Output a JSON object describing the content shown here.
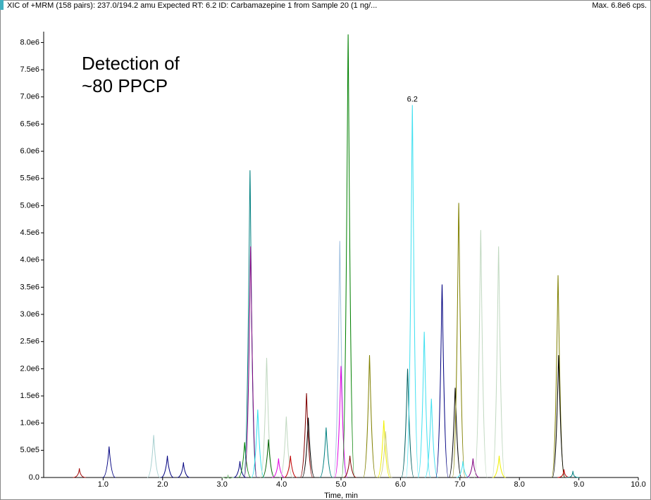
{
  "chart_data": {
    "type": "chromatogram",
    "title": "XIC of +MRM (158 pairs): 237.0/194.2 amu Expected RT: 6.2 ID: Carbamazepine 1 from Sample 20 (1 ng/...",
    "max_label": "Max. 6.8e6 cps.",
    "annotation": [
      "Detection of",
      "~80 PPCP"
    ],
    "peak_label": {
      "x": 6.2,
      "y": 6850000.0,
      "text": "6.2"
    },
    "xlabel": "Time, min",
    "xlim": [
      0,
      10
    ],
    "xticks": [
      {
        "value": 1,
        "label": "1.0"
      },
      {
        "value": 2,
        "label": "2.0"
      },
      {
        "value": 3,
        "label": "3.0"
      },
      {
        "value": 4,
        "label": "4.0"
      },
      {
        "value": 5,
        "label": "5.0"
      },
      {
        "value": 6,
        "label": "6.0"
      },
      {
        "value": 7,
        "label": "7.0"
      },
      {
        "value": 8,
        "label": "8.0"
      },
      {
        "value": 9,
        "label": "9.0"
      },
      {
        "value": 10,
        "label": "10.0"
      }
    ],
    "ylim": [
      0,
      8200000
    ],
    "yticks": [
      {
        "value": 0,
        "label": "0.0"
      },
      {
        "value": 500000,
        "label": "5.0e5"
      },
      {
        "value": 1000000,
        "label": "1.0e6"
      },
      {
        "value": 1500000,
        "label": "1.5e6"
      },
      {
        "value": 2000000,
        "label": "2.0e6"
      },
      {
        "value": 2500000,
        "label": "2.5e6"
      },
      {
        "value": 3000000,
        "label": "3.0e6"
      },
      {
        "value": 3500000,
        "label": "3.5e6"
      },
      {
        "value": 4000000,
        "label": "4.0e6"
      },
      {
        "value": 4500000,
        "label": "4.5e6"
      },
      {
        "value": 5000000,
        "label": "5.0e6"
      },
      {
        "value": 5500000,
        "label": "5.5e6"
      },
      {
        "value": 6000000,
        "label": "6.0e6"
      },
      {
        "value": 6500000,
        "label": "6.5e6"
      },
      {
        "value": 7000000,
        "label": "7.0e6"
      },
      {
        "value": 7500000,
        "label": "7.5e6"
      },
      {
        "value": 8000000,
        "label": "8.0e6"
      }
    ],
    "peaks": {
      "x": [
        0.6,
        1.1,
        1.85,
        2.08,
        2.35,
        3.1,
        3.3,
        3.38,
        3.47,
        3.48,
        3.6,
        3.75,
        3.78,
        3.95,
        4.08,
        4.15,
        4.42,
        4.45,
        4.75,
        4.98,
        5.0,
        5.12,
        5.15,
        5.48,
        5.72,
        5.75,
        6.12,
        6.2,
        6.4,
        6.52,
        6.7,
        6.92,
        6.98,
        7.05,
        7.22,
        7.35,
        7.65,
        7.66,
        8.65,
        8.66,
        8.75,
        8.9
      ],
      "values": [
        170000,
        570000,
        780000,
        400000,
        280000,
        50000,
        300000,
        650000,
        5650000,
        4250000,
        1250000,
        2200000,
        700000,
        350000,
        1120000,
        400000,
        1550000,
        1100000,
        920000,
        4350000,
        2050000,
        8150000,
        400000,
        2250000,
        1050000,
        850000,
        2000000,
        6850000,
        2680000,
        1450000,
        3550000,
        1650000,
        5050000,
        300000,
        350000,
        4550000,
        4250000,
        400000,
        3720000,
        2250000,
        150000,
        120000
      ],
      "colors": [
        "#a00000",
        "#000080",
        "#a8d0d0",
        "#000080",
        "#000080",
        "#80c080",
        "#000080",
        "#008000",
        "#008080",
        "#800080",
        "#30e0f0",
        "#c0d8c0",
        "#006400",
        "#e000e0",
        "#c0d8c0",
        "#c00000",
        "#800000",
        "#000000",
        "#008080",
        "#a0c0e0",
        "#e000e0",
        "#008000",
        "#800000",
        "#808000",
        "#f0f000",
        "#d0d080",
        "#006060",
        "#40e0f0",
        "#40e0f0",
        "#40e0f0",
        "#000080",
        "#000000",
        "#808000",
        "#40e0f0",
        "#800080",
        "#c0d8c0",
        "#c0d8c0",
        "#f0f000",
        "#808000",
        "#000000",
        "#c00000",
        "#008080"
      ]
    }
  }
}
